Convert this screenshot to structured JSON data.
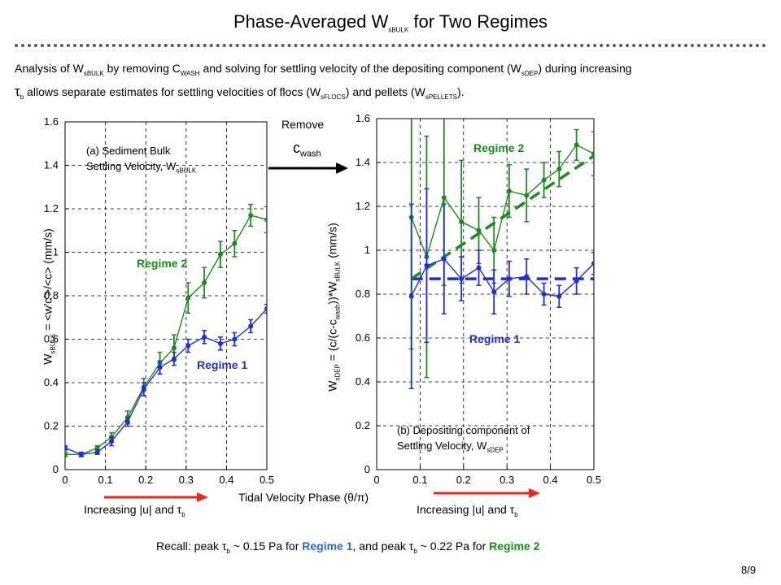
{
  "slide": {
    "title_prefix": "Phase-Averaged W",
    "title_sub": "sBULK",
    "title_suffix": " for Two Regimes",
    "page_number": "8/9"
  },
  "intro": {
    "p1": "Analysis of W",
    "s1": "sBULK",
    "p2": "  by removing C",
    "s2": "WASH",
    "p3": " and solving for settling velocity of the depositing component (W",
    "s3": "sDEP",
    "p4": ") during increasing",
    "tau": "τ",
    "s4": "b",
    "p5": " allows separate estimates for settling velocities of flocs (W",
    "s5": "sFLOCS",
    "p6": ") and pellets (W",
    "s6": "sPELLETS",
    "p7": ")."
  },
  "middle": {
    "remove_label": "Remove",
    "cwash_main": "c",
    "cwash_sub": "wash",
    "x_axis_label": "Tidal Velocity Phase (θ/π)"
  },
  "labels": {
    "inc_left": "Increasing |u| and τ",
    "inc_left_sub": "b",
    "inc_right": "Increasing |u| and τ",
    "inc_right_sub": "b",
    "regime1": "Regime 1",
    "regime2": "Regime 2"
  },
  "recall": {
    "p1": "Recall: peak τ",
    "s1": "b",
    "p2": " ~ 0.15 Pa for ",
    "r1": "Regime 1",
    "p3": ", and peak τ",
    "s2": "b",
    "p4": " ~ 0.22 Pa for ",
    "r2": "Regime 2"
  },
  "colors": {
    "regime1": "#1f2fd1",
    "regime2": "#1d8a1d",
    "recall_blue": "#3366cc",
    "arrow": "#e8291c"
  },
  "chart_data": [
    {
      "type": "line",
      "panel": "a",
      "annotation_line1": "(a) Sediment Bulk",
      "annotation_line2_prefix": "Settling Velocity, W",
      "annotation_line2_sub": "sBULK",
      "ylabel_prefix": "W",
      "ylabel_sub": "sBULK",
      "ylabel_suffix": " = <w'c'>/<c> (mm/s)",
      "xlim": [
        0,
        0.5
      ],
      "ylim": [
        0,
        1.6
      ],
      "xticks": [
        "0",
        "0.1",
        "0.2",
        "0.3",
        "0.4",
        "0.5"
      ],
      "yticks": [
        "0",
        "0.2",
        "0.4",
        "0.6",
        "0.8",
        "1",
        "1.2",
        "1.4",
        "1.6"
      ],
      "grid": true,
      "series": [
        {
          "name": "Regime 1",
          "x": [
            0.0,
            0.04,
            0.08,
            0.115,
            0.155,
            0.195,
            0.235,
            0.27,
            0.305,
            0.345,
            0.385,
            0.42,
            0.46,
            0.5
          ],
          "y": [
            0.1,
            0.07,
            0.08,
            0.13,
            0.22,
            0.37,
            0.47,
            0.51,
            0.57,
            0.61,
            0.58,
            0.6,
            0.66,
            0.74
          ],
          "err": [
            0.01,
            0.01,
            0.01,
            0.02,
            0.02,
            0.03,
            0.03,
            0.03,
            0.03,
            0.03,
            0.03,
            0.03,
            0.03,
            0.02
          ]
        },
        {
          "name": "Regime 2",
          "x": [
            0.0,
            0.04,
            0.08,
            0.115,
            0.155,
            0.195,
            0.235,
            0.27,
            0.305,
            0.345,
            0.385,
            0.42,
            0.46,
            0.5
          ],
          "y": [
            0.07,
            0.07,
            0.1,
            0.15,
            0.24,
            0.38,
            0.49,
            0.56,
            0.79,
            0.86,
            0.99,
            1.04,
            1.17,
            1.15
          ],
          "err": [
            0.01,
            0.01,
            0.01,
            0.02,
            0.03,
            0.04,
            0.05,
            0.06,
            0.07,
            0.07,
            0.06,
            0.06,
            0.05,
            0.06
          ]
        }
      ]
    },
    {
      "type": "line",
      "panel": "b",
      "annotation_line1": "(b) Depositing component of",
      "annotation_line2_prefix": "Settling Velocity, W",
      "annotation_line2_sub": "sDEP",
      "ylabel_prefix": "W",
      "ylabel_sub": "sDEP",
      "ylabel_suffix": " = (c/(c-c",
      "ylabel_sub2": "wash",
      "ylabel_suffix2": "))*W",
      "ylabel_sub3": "sBULK",
      "ylabel_suffix3": " (mm/s)",
      "xlim": [
        0,
        0.5
      ],
      "ylim": [
        0,
        1.6
      ],
      "xticks": [
        "0",
        "0.1",
        "0.2",
        "0.3",
        "0.4",
        "0.5"
      ],
      "yticks": [
        "0",
        "0.2",
        "0.4",
        "0.6",
        "0.8",
        "1",
        "1.2",
        "1.4",
        "1.6"
      ],
      "grid": true,
      "series": [
        {
          "name": "Regime 1",
          "x": [
            0.08,
            0.115,
            0.155,
            0.195,
            0.235,
            0.27,
            0.305,
            0.345,
            0.385,
            0.42,
            0.46,
            0.5
          ],
          "y": [
            0.79,
            0.93,
            0.96,
            0.87,
            0.92,
            0.81,
            0.87,
            0.88,
            0.8,
            0.79,
            0.86,
            0.94
          ],
          "err": [
            0.42,
            0.35,
            0.25,
            0.1,
            0.08,
            0.1,
            0.08,
            0.08,
            0.05,
            0.05,
            0.06,
            0.05
          ]
        },
        {
          "name": "Regime 2",
          "x": [
            0.08,
            0.115,
            0.155,
            0.195,
            0.235,
            0.27,
            0.305,
            0.345,
            0.385,
            0.42,
            0.46,
            0.5
          ],
          "y": [
            1.15,
            0.97,
            1.24,
            1.13,
            1.09,
            1.0,
            1.27,
            1.25,
            1.32,
            1.37,
            1.48,
            1.44
          ],
          "err": [
            0.6,
            0.55,
            0.4,
            0.28,
            0.15,
            0.15,
            0.12,
            0.12,
            0.08,
            0.08,
            0.07,
            0.1
          ]
        }
      ],
      "trend_lines": [
        {
          "name": "Regime 1",
          "x": [
            0.08,
            0.5
          ],
          "y": [
            0.87,
            0.87
          ]
        },
        {
          "name": "Regime 2",
          "x": [
            0.08,
            0.5
          ],
          "y": [
            0.87,
            1.43
          ]
        }
      ]
    }
  ]
}
